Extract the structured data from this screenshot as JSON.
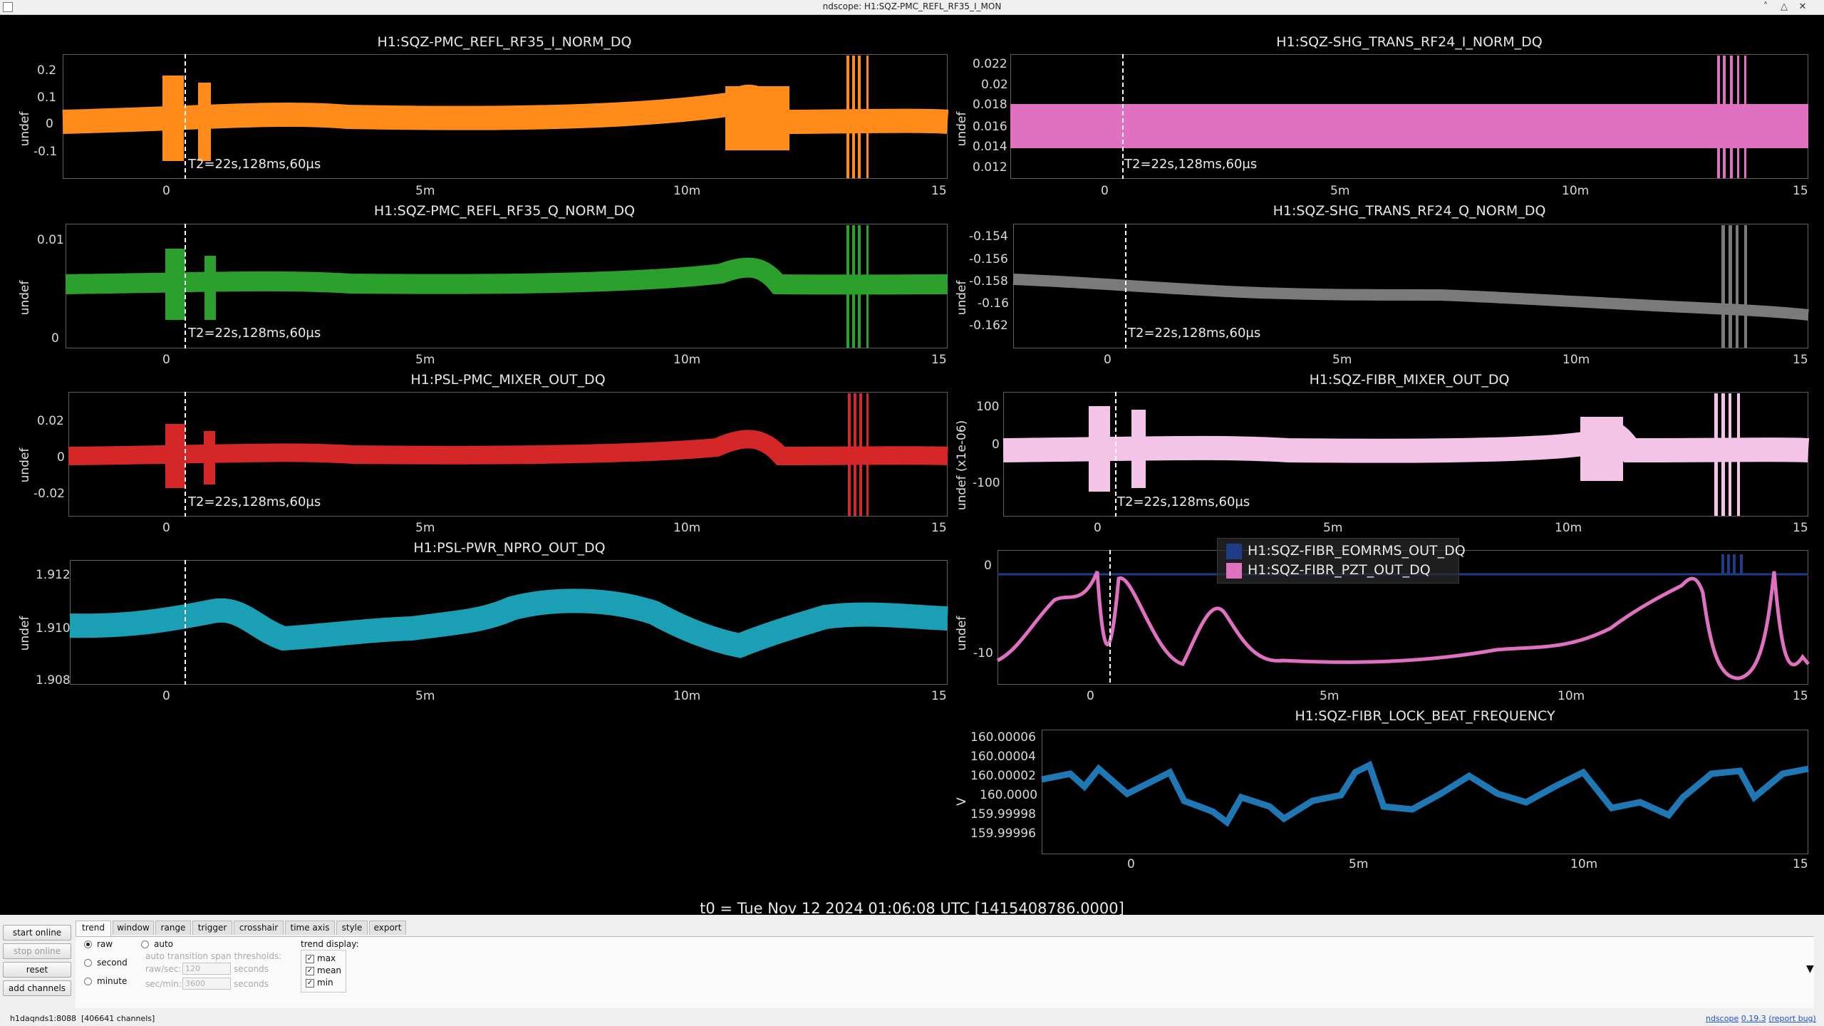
{
  "window": {
    "title": "ndscope: H1:SQZ-PMC_REFL_RF35_I_MON",
    "buttons": [
      "˄",
      "△",
      "✕"
    ]
  },
  "colors": {
    "orange": "#ff8c1a",
    "pink": "#e070c0",
    "green": "#2ca02c",
    "gray": "#7a7a7a",
    "red": "#d62728",
    "lightpink": "#f3c3e8",
    "teal": "#1a9fb5",
    "navy": "#1f3c88",
    "blue": "#1f77b4"
  },
  "plots": [
    {
      "title": "H1:SQZ-PMC_REFL_RF35_I_NORM_DQ",
      "ylabel": "undef",
      "yticks": [
        "0.2",
        "0.1",
        "0",
        "-0.1"
      ],
      "xticks": [
        "0",
        "5m",
        "10m",
        "15"
      ],
      "cursor": "T2=22s,128ms,60µs"
    },
    {
      "title": "H1:SQZ-SHG_TRANS_RF24_I_NORM_DQ",
      "ylabel": "undef",
      "yticks": [
        "0.022",
        "0.02",
        "0.018",
        "0.016",
        "0.014",
        "0.012"
      ],
      "xticks": [
        "0",
        "5m",
        "10m",
        "15"
      ],
      "cursor": "T2=22s,128ms,60µs"
    },
    {
      "title": "H1:SQZ-PMC_REFL_RF35_Q_NORM_DQ",
      "ylabel": "undef",
      "yticks": [
        "0.01",
        "0"
      ],
      "xticks": [
        "0",
        "5m",
        "10m",
        "15"
      ],
      "cursor": "T2=22s,128ms,60µs"
    },
    {
      "title": "H1:SQZ-SHG_TRANS_RF24_Q_NORM_DQ",
      "ylabel": "undef",
      "yticks": [
        "-0.154",
        "-0.156",
        "-0.158",
        "-0.16",
        "-0.162"
      ],
      "xticks": [
        "0",
        "5m",
        "10m",
        "15"
      ],
      "cursor": "T2=22s,128ms,60µs"
    },
    {
      "title": "H1:PSL-PMC_MIXER_OUT_DQ",
      "ylabel": "undef",
      "yticks": [
        "0.02",
        "0",
        "-0.02"
      ],
      "xticks": [
        "0",
        "5m",
        "10m",
        "15"
      ],
      "cursor": "T2=22s,128ms,60µs"
    },
    {
      "title": "H1:SQZ-FIBR_MIXER_OUT_DQ",
      "ylabel": "undef (x1e-06)",
      "yticks": [
        "100",
        "0",
        "-100"
      ],
      "xticks": [
        "0",
        "5m",
        "10m",
        "15"
      ],
      "cursor": "T2=22s,128ms,60µs"
    },
    {
      "title": "H1:PSL-PWR_NPRO_OUT_DQ",
      "ylabel": "undef",
      "yticks": [
        "1.912",
        "1.910",
        "1.908"
      ],
      "xticks": [
        "0",
        "5m",
        "10m",
        "15"
      ]
    },
    {
      "title": "",
      "ylabel": "undef",
      "yticks": [
        "0",
        "-10"
      ],
      "xticks": [
        "0",
        "5m",
        "10m",
        "15"
      ],
      "legend": [
        "H1:SQZ-FIBR_EOMRMS_OUT_DQ",
        "H1:SQZ-FIBR_PZT_OUT_DQ"
      ]
    },
    {
      "title": "H1:SQZ-FIBR_LOCK_BEAT_FREQUENCY",
      "ylabel": "V",
      "yticks": [
        "160.00006",
        "160.00004",
        "160.00002",
        "160.0000",
        "159.99998",
        "159.99996"
      ],
      "xticks": [
        "0",
        "5m",
        "10m",
        "15"
      ]
    }
  ],
  "t0_label": "t0 = Tue Nov 12 2024 01:06:08 UTC [1415408786.0000]",
  "controls": {
    "start_online": "start online",
    "stop_online": "stop online",
    "reset": "reset",
    "add_channels": "add channels",
    "tabs": [
      "trend",
      "window",
      "range",
      "trigger",
      "crosshair",
      "time axis",
      "style",
      "export"
    ],
    "radios": [
      "raw",
      "second",
      "minute",
      "auto"
    ],
    "thresholds_label": "auto transition span thresholds:",
    "raw_sec_label": "raw/sec:",
    "raw_sec_value": "120",
    "sec_min_label": "sec/min:",
    "sec_min_value": "3600",
    "seconds": "seconds",
    "trend_display": "trend display:",
    "checks": [
      "max",
      "mean",
      "min"
    ],
    "check_mark": "✓",
    "scroll_arrow": "▼"
  },
  "status": {
    "server": "h1daqnds1:8088",
    "channels": "[406641 channels]",
    "version_name": "ndscope",
    "version": "0.19.3",
    "bug": "(report bug)"
  }
}
